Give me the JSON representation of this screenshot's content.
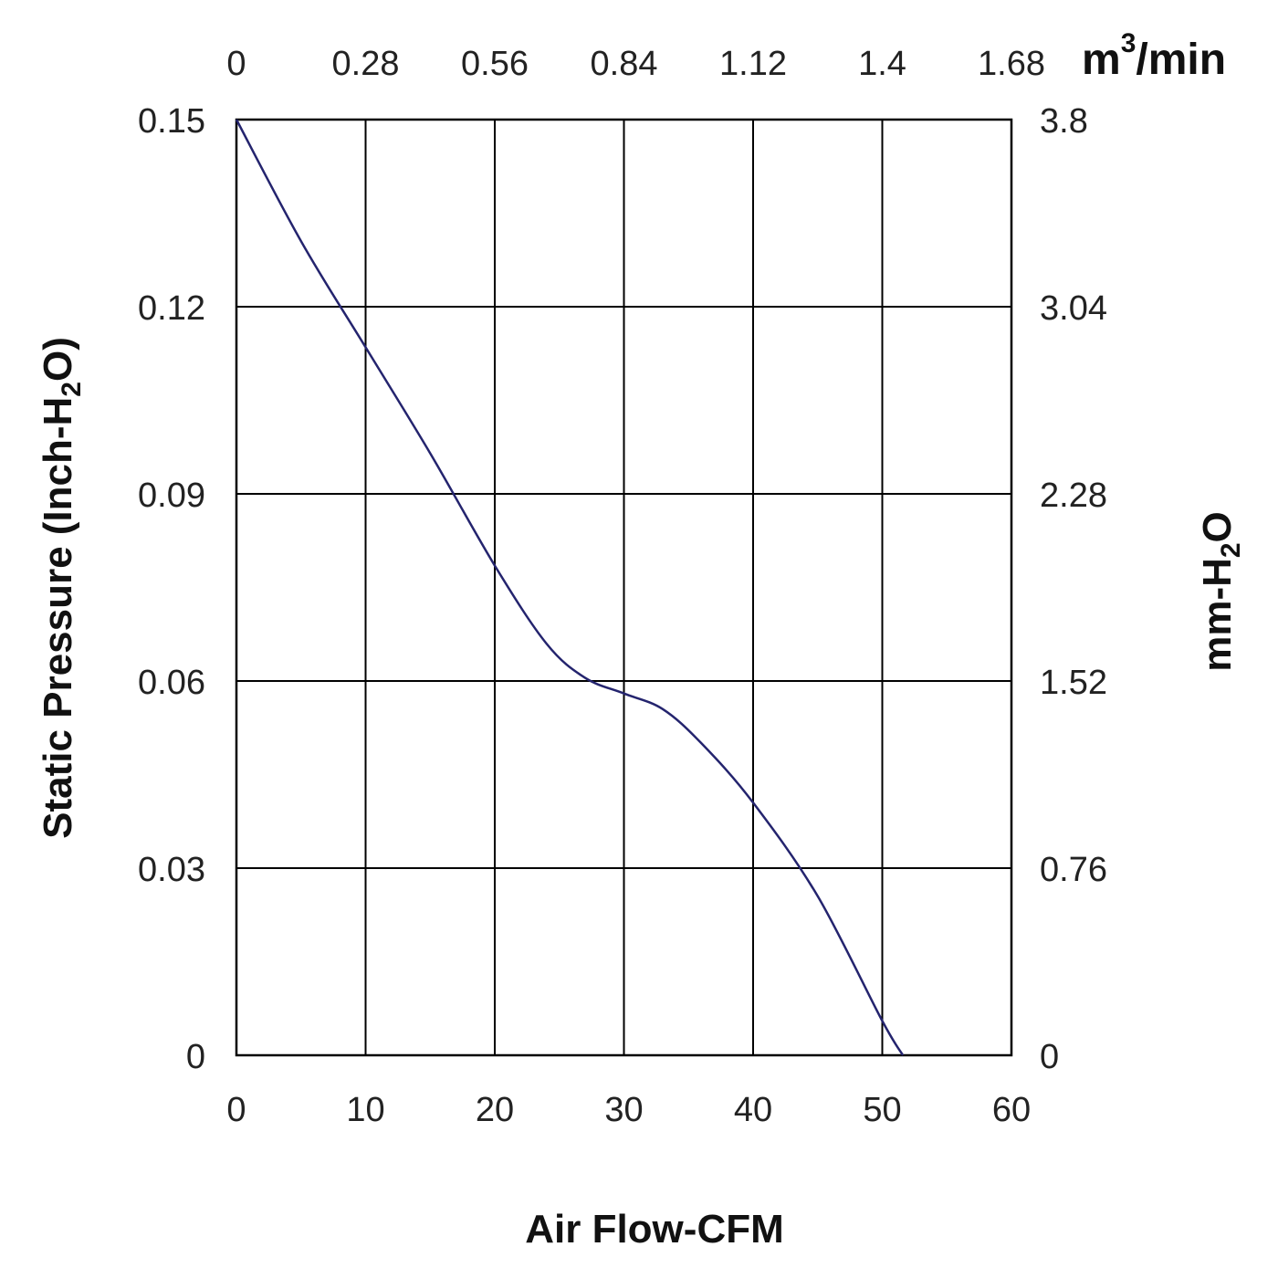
{
  "chart_data": {
    "type": "line",
    "title": "",
    "xlabel": "Air Flow-CFM",
    "ylabel": {
      "main": "Static Pressure (Inch-H",
      "sub": "2",
      "tail": "O)"
    },
    "y2label": {
      "main": "mm-H",
      "sub": "2",
      "tail": "O"
    },
    "x2label": {
      "main": "m",
      "sup": "3",
      "tail": "/min"
    },
    "xlim": [
      0,
      60
    ],
    "ylim": [
      0,
      0.15
    ],
    "grid": true,
    "x_ticks": [
      "0",
      "10",
      "20",
      "30",
      "40",
      "50",
      "60"
    ],
    "y_ticks": [
      "0",
      "0.03",
      "0.06",
      "0.09",
      "0.12",
      "0.15"
    ],
    "x2_ticks": [
      "0",
      "0.28",
      "0.56",
      "0.84",
      "1.12",
      "1.4",
      "1.68"
    ],
    "y2_ticks": [
      "0",
      "0.76",
      "1.52",
      "2.28",
      "3.04",
      "3.8"
    ],
    "line_color": "#24246e",
    "series": [
      {
        "x": [
          0,
          5,
          10,
          15,
          20,
          24,
          27,
          30,
          33,
          36,
          40,
          45,
          50,
          51.6
        ],
        "y": [
          0.15,
          0.1305,
          0.1135,
          0.0965,
          0.0785,
          0.066,
          0.0605,
          0.058,
          0.0555,
          0.05,
          0.0405,
          0.0255,
          0.0055,
          0
        ]
      }
    ]
  }
}
